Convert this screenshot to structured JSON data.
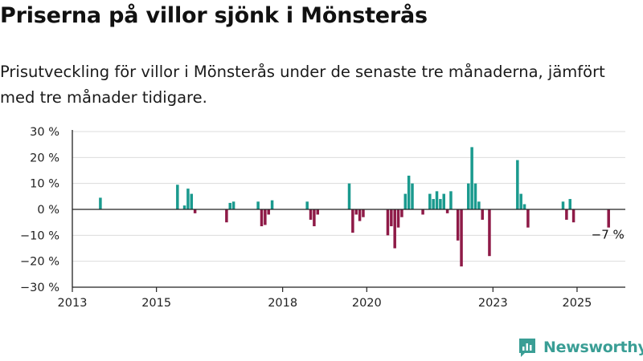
{
  "title": "Priserna på villor sjönk i Mönsterås",
  "subtitle": "Prisutveckling för villor i Mönsterås under de senaste tre månaderna, jämfört med tre månader tidigare.",
  "brand": {
    "name": "Newsworthy",
    "logo_icon": "newsworthy-logo-icon"
  },
  "colors": {
    "positive": "#1a9a8e",
    "negative": "#8e1a47",
    "grid": "#dcdcdc",
    "axis": "#222222",
    "brand": "#3a9e95"
  },
  "chart_data": {
    "type": "bar",
    "title": "Priserna på villor sjönk i Mönsterås",
    "subtitle": "Prisutveckling för villor i Mönsterås under de senaste tre månaderna, jämfört med tre månader tidigare.",
    "xlabel": "",
    "ylabel": "",
    "unit": "%",
    "xlim": [
      "2013-01-01",
      "2026-06-01"
    ],
    "ylim": [
      -30,
      30
    ],
    "y_ticks": [
      30,
      20,
      10,
      0,
      -10,
      -20,
      -30
    ],
    "y_tick_labels": [
      "30 %",
      "20 %",
      "10 %",
      "0 %",
      "−10 %",
      "−20 %",
      "−30 %"
    ],
    "x_ticks": [
      "2013",
      "2015",
      "2018",
      "2020",
      "2023",
      "2025"
    ],
    "grid": "horizontal",
    "annotation": {
      "text": "−7 %",
      "date": "2025-10",
      "value": -7
    },
    "bars": [
      {
        "date": "2013-09",
        "value": 4.5
      },
      {
        "date": "2015-07",
        "value": 9.5
      },
      {
        "date": "2015-09",
        "value": 1.5
      },
      {
        "date": "2015-10",
        "value": 8
      },
      {
        "date": "2015-11",
        "value": 6
      },
      {
        "date": "2015-12",
        "value": -1.5
      },
      {
        "date": "2016-09",
        "value": -5
      },
      {
        "date": "2016-10",
        "value": 2.5
      },
      {
        "date": "2016-11",
        "value": 3
      },
      {
        "date": "2017-06",
        "value": 3
      },
      {
        "date": "2017-07",
        "value": -6.5
      },
      {
        "date": "2017-08",
        "value": -6
      },
      {
        "date": "2017-09",
        "value": -2
      },
      {
        "date": "2017-10",
        "value": 3.5
      },
      {
        "date": "2018-08",
        "value": 3
      },
      {
        "date": "2018-09",
        "value": -4
      },
      {
        "date": "2018-10",
        "value": -6.5
      },
      {
        "date": "2018-11",
        "value": -2
      },
      {
        "date": "2019-08",
        "value": 10
      },
      {
        "date": "2019-09",
        "value": -9
      },
      {
        "date": "2019-10",
        "value": -2
      },
      {
        "date": "2019-11",
        "value": -4.5
      },
      {
        "date": "2019-12",
        "value": -3
      },
      {
        "date": "2020-07",
        "value": -10
      },
      {
        "date": "2020-08",
        "value": -6.5
      },
      {
        "date": "2020-09",
        "value": -15
      },
      {
        "date": "2020-10",
        "value": -7
      },
      {
        "date": "2020-11",
        "value": -3
      },
      {
        "date": "2020-12",
        "value": 6
      },
      {
        "date": "2021-01",
        "value": 13
      },
      {
        "date": "2021-02",
        "value": 10
      },
      {
        "date": "2021-05",
        "value": -2
      },
      {
        "date": "2021-07",
        "value": 6
      },
      {
        "date": "2021-08",
        "value": 4
      },
      {
        "date": "2021-09",
        "value": 7
      },
      {
        "date": "2021-10",
        "value": 4
      },
      {
        "date": "2021-11",
        "value": 6
      },
      {
        "date": "2021-12",
        "value": -1.5
      },
      {
        "date": "2022-01",
        "value": 7
      },
      {
        "date": "2022-03",
        "value": -12
      },
      {
        "date": "2022-04",
        "value": -22
      },
      {
        "date": "2022-06",
        "value": 10
      },
      {
        "date": "2022-07",
        "value": 24
      },
      {
        "date": "2022-08",
        "value": 10
      },
      {
        "date": "2022-09",
        "value": 3
      },
      {
        "date": "2022-10",
        "value": -4
      },
      {
        "date": "2022-12",
        "value": -18
      },
      {
        "date": "2023-08",
        "value": 19
      },
      {
        "date": "2023-09",
        "value": 6
      },
      {
        "date": "2023-10",
        "value": 2
      },
      {
        "date": "2023-11",
        "value": -7
      },
      {
        "date": "2024-09",
        "value": 3
      },
      {
        "date": "2024-10",
        "value": -4
      },
      {
        "date": "2024-11",
        "value": 4
      },
      {
        "date": "2024-12",
        "value": -5
      },
      {
        "date": "2025-10",
        "value": -7
      }
    ]
  }
}
